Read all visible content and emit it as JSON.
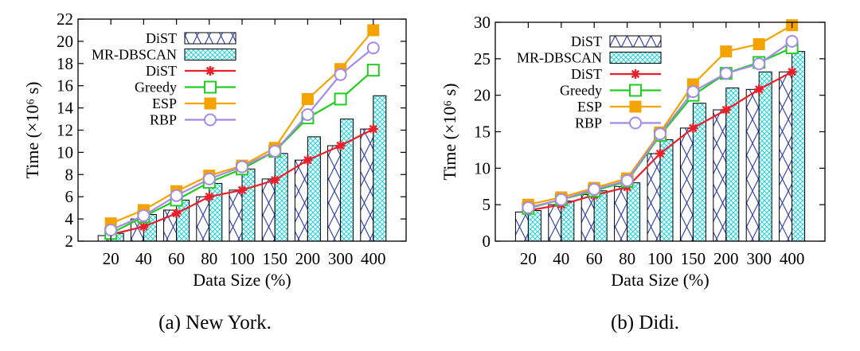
{
  "chart_data": [
    {
      "type": "bar+line",
      "caption": "(a)  New York.",
      "xlabel": "Data Size (%)",
      "ylabel": "Time (×10⁶ s)",
      "categories": [
        "20",
        "40",
        "60",
        "80",
        "100",
        "150",
        "200",
        "300",
        "400"
      ],
      "ylim": [
        2,
        22
      ],
      "yticks": [
        2,
        4,
        6,
        8,
        10,
        12,
        14,
        16,
        18,
        20,
        22
      ],
      "bars": [
        {
          "name": "DiST",
          "pattern": "cross-blue",
          "values": [
            2.5,
            4.0,
            4.8,
            6.0,
            6.6,
            7.6,
            9.3,
            10.6,
            12.1
          ]
        },
        {
          "name": "MR-DBSCAN",
          "pattern": "cyan-lattice",
          "values": [
            2.7,
            4.4,
            5.7,
            7.2,
            8.5,
            9.9,
            11.4,
            13.0,
            15.1
          ]
        }
      ],
      "lines": [
        {
          "name": "DiST",
          "color": "#e8202a",
          "marker": "star",
          "values": [
            2.6,
            3.3,
            4.5,
            6.0,
            6.6,
            7.5,
            9.3,
            10.6,
            12.1
          ]
        },
        {
          "name": "Greedy",
          "color": "#22cc22",
          "marker": "open-square",
          "values": [
            2.7,
            4.2,
            5.7,
            7.3,
            8.5,
            10.1,
            13.1,
            14.8,
            17.4
          ]
        },
        {
          "name": "ESP",
          "color": "#f5a300",
          "marker": "filled-square",
          "values": [
            3.6,
            4.8,
            6.5,
            7.9,
            8.8,
            10.4,
            14.8,
            17.5,
            21.0
          ]
        },
        {
          "name": "RBP",
          "color": "#a58be8",
          "marker": "open-circle",
          "values": [
            3.0,
            4.3,
            6.1,
            7.6,
            8.7,
            10.1,
            13.4,
            17.0,
            19.4
          ]
        }
      ],
      "legend_position": "top-left"
    },
    {
      "type": "bar+line",
      "caption": "(b)  Didi.",
      "xlabel": "Data Size (%)",
      "ylabel": "Time (×10⁶ s)",
      "categories": [
        "20",
        "40",
        "60",
        "80",
        "100",
        "150",
        "200",
        "300",
        "400"
      ],
      "ylim": [
        0,
        30
      ],
      "yticks": [
        0,
        5,
        10,
        15,
        20,
        25,
        30
      ],
      "bars": [
        {
          "name": "DiST",
          "pattern": "cross-blue",
          "values": [
            4.0,
            5.0,
            6.4,
            7.5,
            12.0,
            15.5,
            18.0,
            20.8,
            23.2
          ]
        },
        {
          "name": "MR-DBSCAN",
          "pattern": "cyan-lattice",
          "values": [
            4.2,
            5.5,
            6.9,
            8.0,
            13.9,
            18.9,
            21.0,
            23.2,
            26.0
          ]
        }
      ],
      "lines": [
        {
          "name": "DiST",
          "color": "#e8202a",
          "marker": "star",
          "values": [
            4.2,
            5.0,
            6.3,
            7.4,
            12.0,
            15.5,
            18.0,
            20.8,
            23.2
          ]
        },
        {
          "name": "Greedy",
          "color": "#22cc22",
          "marker": "open-square",
          "values": [
            4.5,
            5.7,
            6.9,
            8.2,
            14.5,
            20.0,
            23.0,
            24.5,
            26.5
          ]
        },
        {
          "name": "ESP",
          "color": "#f5a300",
          "marker": "filled-square",
          "values": [
            5.0,
            6.0,
            7.3,
            8.6,
            14.9,
            21.5,
            26.0,
            27.0,
            29.6
          ]
        },
        {
          "name": "RBP",
          "color": "#a58be8",
          "marker": "open-circle",
          "values": [
            4.6,
            5.7,
            7.1,
            8.3,
            14.7,
            20.5,
            23.0,
            24.3,
            27.4
          ]
        }
      ],
      "legend_position": "top-left"
    }
  ]
}
